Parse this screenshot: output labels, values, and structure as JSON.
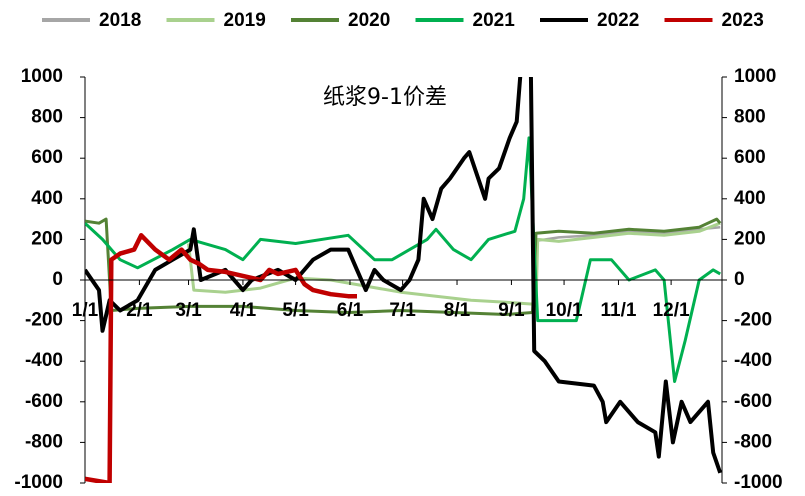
{
  "chart_data": {
    "type": "line",
    "title": "纸浆9-1价差",
    "xlim": [
      0,
      363
    ],
    "xticks": [
      {
        "value": 0,
        "label": "1/1"
      },
      {
        "value": 31,
        "label": "2/1"
      },
      {
        "value": 59,
        "label": "3/1"
      },
      {
        "value": 90,
        "label": "4/1"
      },
      {
        "value": 120,
        "label": "5/1"
      },
      {
        "value": 151,
        "label": "6/1"
      },
      {
        "value": 181,
        "label": "7/1"
      },
      {
        "value": 212,
        "label": "8/1"
      },
      {
        "value": 243,
        "label": "9/1"
      },
      {
        "value": 273,
        "label": "10/1"
      },
      {
        "value": 304,
        "label": "11/1"
      },
      {
        "value": 334,
        "label": "12/1"
      }
    ],
    "ylim": [
      -1000,
      1000
    ],
    "yticks": [
      -1000,
      -800,
      -600,
      -400,
      -200,
      0,
      200,
      400,
      600,
      800,
      1000
    ],
    "y2lim": [
      -1000,
      1000
    ],
    "y2ticks": [
      -1000,
      -800,
      -600,
      -400,
      -200,
      0,
      200,
      400,
      600,
      800,
      1000
    ],
    "legend": "top",
    "series": [
      {
        "name": "2018",
        "color": "#a6a6a6",
        "x": [
          255,
          270,
          290,
          310,
          330,
          350,
          362
        ],
        "values": [
          190,
          210,
          220,
          240,
          230,
          250,
          260
        ]
      },
      {
        "name": "2019",
        "color": "#a9d18e",
        "x": [
          59,
          62,
          80,
          100,
          120,
          140,
          160,
          180,
          200,
          220,
          240,
          257,
          258,
          270,
          290,
          310,
          330,
          350,
          362
        ],
        "values": [
          180,
          -50,
          -60,
          -40,
          10,
          0,
          -30,
          -60,
          -80,
          -100,
          -110,
          -120,
          200,
          190,
          210,
          230,
          220,
          240,
          280
        ]
      },
      {
        "name": "2020",
        "color": "#548235",
        "x": [
          0,
          8,
          12,
          15,
          30,
          60,
          90,
          120,
          150,
          180,
          210,
          240,
          255,
          257,
          270,
          290,
          310,
          330,
          350,
          360,
          362
        ],
        "values": [
          290,
          280,
          300,
          -150,
          -140,
          -130,
          -130,
          -150,
          -160,
          -150,
          -160,
          -170,
          -160,
          230,
          240,
          230,
          250,
          240,
          260,
          300,
          280
        ]
      },
      {
        "name": "2021",
        "color": "#00b050",
        "x": [
          0,
          10,
          20,
          30,
          50,
          60,
          80,
          90,
          100,
          120,
          150,
          165,
          175,
          185,
          195,
          200,
          210,
          220,
          230,
          245,
          250,
          253,
          258,
          280,
          288,
          300,
          310,
          325,
          330,
          336,
          342,
          350,
          358,
          362
        ],
        "values": [
          280,
          200,
          100,
          60,
          150,
          200,
          150,
          100,
          200,
          180,
          220,
          100,
          100,
          150,
          200,
          250,
          150,
          100,
          200,
          240,
          400,
          700,
          -200,
          -200,
          100,
          100,
          0,
          50,
          0,
          -500,
          -300,
          0,
          50,
          30
        ]
      },
      {
        "name": "2022",
        "color": "#000000",
        "x": [
          0,
          8,
          10,
          14,
          20,
          30,
          40,
          50,
          60,
          62,
          66,
          80,
          90,
          95,
          110,
          120,
          130,
          140,
          150,
          155,
          160,
          165,
          170,
          180,
          185,
          190,
          193,
          198,
          203,
          208,
          216,
          219,
          228,
          230,
          236,
          242,
          246,
          248,
          250,
          254,
          256,
          262,
          270,
          290,
          295,
          297,
          305,
          315,
          325,
          327,
          331,
          335,
          340,
          345,
          355,
          358,
          362
        ],
        "values": [
          50,
          -50,
          -250,
          -100,
          -150,
          -100,
          50,
          100,
          150,
          250,
          0,
          50,
          -50,
          0,
          50,
          0,
          100,
          150,
          150,
          50,
          -50,
          50,
          0,
          -50,
          0,
          100,
          400,
          300,
          450,
          500,
          600,
          630,
          400,
          500,
          550,
          700,
          780,
          1000,
          1100,
          1100,
          -350,
          -400,
          -500,
          -520,
          -600,
          -700,
          -600,
          -700,
          -750,
          -870,
          -500,
          -800,
          -600,
          -700,
          -600,
          -850,
          -950
        ]
      },
      {
        "name": "2023",
        "color": "#c00000",
        "x": [
          0,
          14,
          15,
          20,
          28,
          32,
          40,
          48,
          55,
          60,
          65,
          70,
          80,
          90,
          100,
          105,
          110,
          120,
          125,
          130,
          140,
          150,
          155
        ],
        "values": [
          -980,
          -1000,
          100,
          130,
          150,
          220,
          150,
          100,
          150,
          100,
          80,
          50,
          40,
          20,
          0,
          50,
          30,
          50,
          -20,
          -50,
          -70,
          -80,
          -80
        ]
      }
    ]
  }
}
